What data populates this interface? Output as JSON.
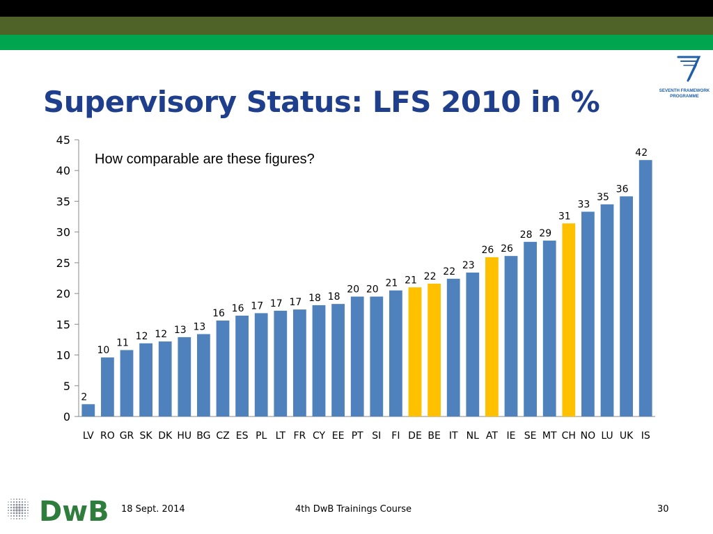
{
  "slide": {
    "title": "Supervisory Status: LFS 2010 in %",
    "footer": {
      "date": "18 Sept. 2014",
      "course": "4th DwB Trainings Course",
      "page": "30",
      "logo_text": "DwB"
    },
    "fp7_logo": {
      "line1": "SEVENTH FRAMEWORK",
      "line2": "PROGRAMME"
    },
    "colors": {
      "title": "#1f3f8c",
      "top_black": "#000000",
      "top_olive": "#4f6228",
      "top_green": "#00a550",
      "dwb_green": "#2e7d3c"
    }
  },
  "chart_data": {
    "type": "bar",
    "annotation": "How comparable are these figures?",
    "categories": [
      "LV",
      "RO",
      "GR",
      "SK",
      "DK",
      "HU",
      "BG",
      "CZ",
      "ES",
      "PL",
      "LT",
      "FR",
      "CY",
      "EE",
      "PT",
      "SI",
      "FI",
      "DE",
      "BE",
      "IT",
      "NL",
      "AT",
      "IE",
      "SE",
      "MT",
      "CH",
      "NO",
      "LU",
      "UK",
      "IS"
    ],
    "values": [
      2,
      9.6,
      10.8,
      11.9,
      12.2,
      12.9,
      13.4,
      15.6,
      16.4,
      16.8,
      17.2,
      17.4,
      18.1,
      18.3,
      19.5,
      19.5,
      20.5,
      21,
      21.6,
      22.4,
      23.4,
      25.9,
      26.1,
      28.4,
      28.6,
      31.4,
      33.3,
      34.5,
      35.8,
      41.7
    ],
    "data_labels": [
      "2",
      "10",
      "11",
      "12",
      "12",
      "13",
      "13",
      "16",
      "16",
      "17",
      "17",
      "17",
      "18",
      "18",
      "20",
      "20",
      "21",
      "21",
      "22",
      "22",
      "23",
      "26",
      "26",
      "28",
      "29",
      "31",
      "33",
      "35",
      "36",
      "42"
    ],
    "highlighted": [
      "DE",
      "BE",
      "AT",
      "CH"
    ],
    "colors": {
      "default": "#4f81bd",
      "highlight": "#ffc000"
    },
    "ylim": [
      0,
      45
    ],
    "yticks": [
      0,
      5,
      10,
      15,
      20,
      25,
      30,
      35,
      40,
      45
    ],
    "grid": false
  }
}
